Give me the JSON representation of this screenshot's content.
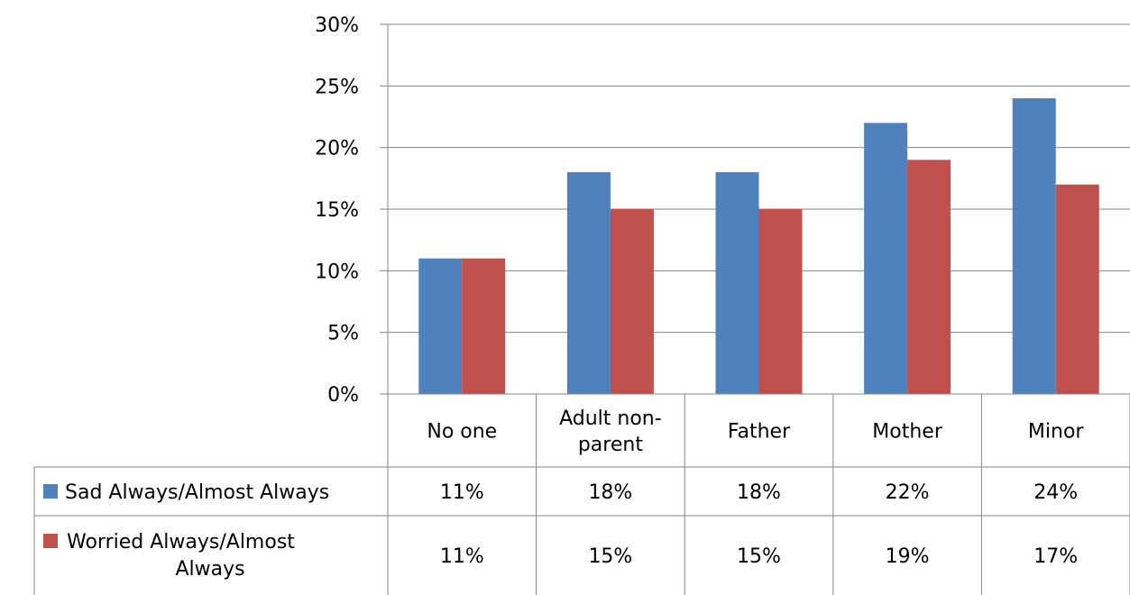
{
  "chart_data": {
    "type": "bar",
    "title": "",
    "xlabel": "",
    "ylabel": "",
    "categories": [
      [
        "No one"
      ],
      [
        "Adult non-",
        "parent"
      ],
      [
        "Father"
      ],
      [
        "Mother"
      ],
      [
        "Minor"
      ]
    ],
    "series": [
      {
        "name": [
          "Sad Always/Almost Always"
        ],
        "values": [
          0.11,
          0.18,
          0.18,
          0.22,
          0.24
        ],
        "labels": [
          "11%",
          "18%",
          "18%",
          "22%",
          "24%"
        ],
        "color": "#4F81BD"
      },
      {
        "name": [
          "Worried Always/Almost",
          "Always"
        ],
        "values": [
          0.11,
          0.15,
          0.15,
          0.19,
          0.17
        ],
        "labels": [
          "11%",
          "15%",
          "15%",
          "19%",
          "17%"
        ],
        "color": "#C0504D"
      }
    ],
    "ylim": [
      0,
      0.3
    ],
    "yticks": [
      "0%",
      "5%",
      "10%",
      "15%",
      "20%",
      "25%",
      "30%"
    ],
    "grid": true,
    "legend": "data-table-left",
    "data_table": true
  }
}
